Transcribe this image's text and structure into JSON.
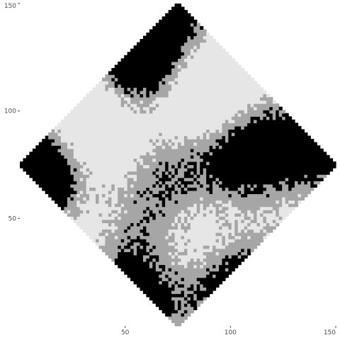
{
  "chart_data": {
    "type": "heatmap",
    "title": "",
    "xlabel": "",
    "ylabel": "",
    "xlim": [
      0,
      150
    ],
    "ylim": [
      0,
      150
    ],
    "x_ticks": [
      {
        "value": 50,
        "label": "50"
      },
      {
        "value": 100,
        "label": "100"
      },
      {
        "value": 150,
        "label": "150"
      }
    ],
    "y_ticks": [
      {
        "value": 50,
        "label": "50"
      },
      {
        "value": 100,
        "label": "100"
      },
      {
        "value": 150,
        "label": "150"
      }
    ],
    "grid": false,
    "legend": "none",
    "domain_shape": "diamond",
    "diamond_vertices": [
      {
        "x": 75,
        "y": 150
      },
      {
        "x": 150,
        "y": 75
      },
      {
        "x": 75,
        "y": 0
      },
      {
        "x": 0,
        "y": 75
      }
    ],
    "categories": [
      "light",
      "mid",
      "dark"
    ],
    "colors": {
      "light": "#e6e6e6",
      "mid": "#a6a6a6",
      "dark": "#000000",
      "panel_bg": "#ffffff",
      "frame": "#ebebeb"
    },
    "cell_size": 1.5
  }
}
